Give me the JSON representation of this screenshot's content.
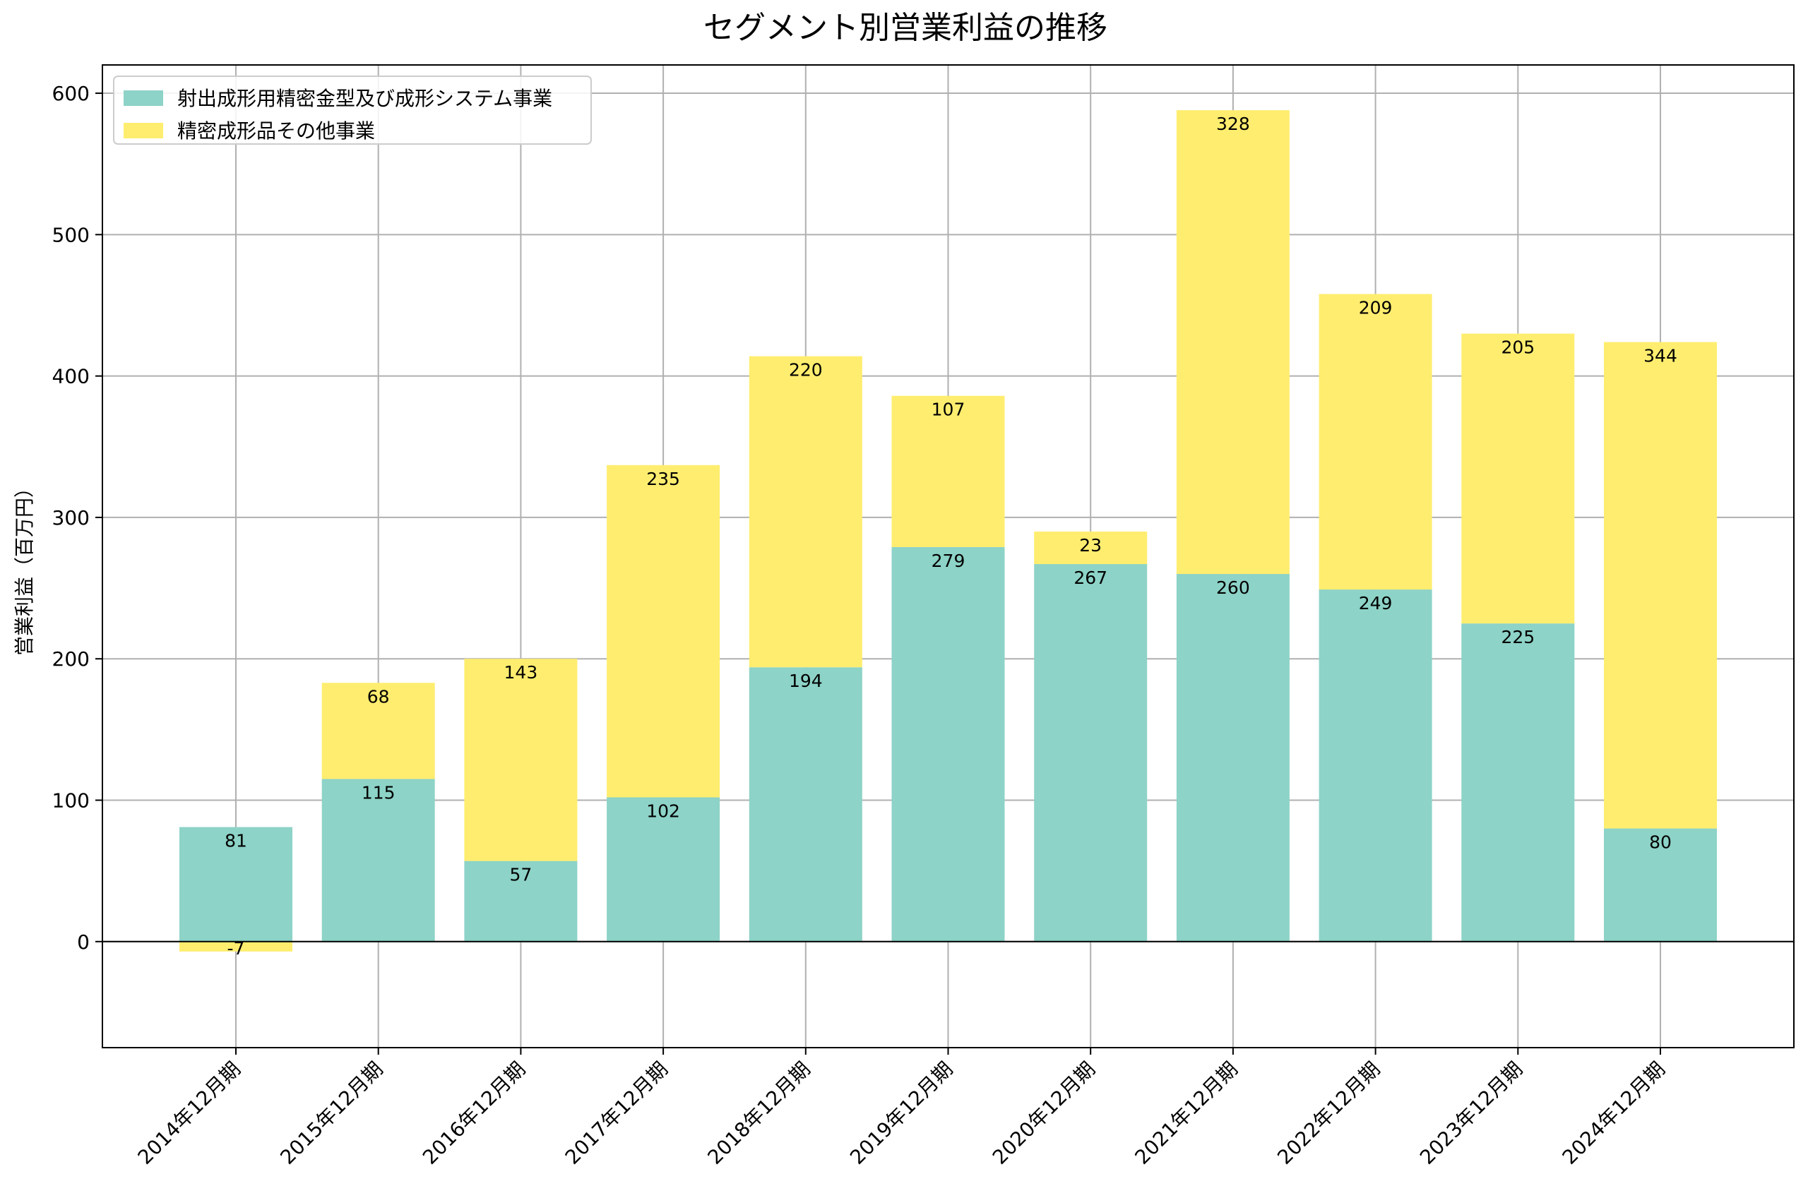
{
  "chart_data": {
    "type": "bar",
    "stacked": true,
    "title": "セグメント別営業利益の推移",
    "xlabel": "",
    "ylabel": "営業利益（百万円）",
    "ylim": [
      -75,
      620
    ],
    "yticks": [
      0,
      100,
      200,
      300,
      400,
      500,
      600
    ],
    "grid": true,
    "legend_position": "top-left",
    "categories": [
      "2014年12月期",
      "2015年12月期",
      "2016年12月期",
      "2017年12月期",
      "2018年12月期",
      "2019年12月期",
      "2020年12月期",
      "2021年12月期",
      "2022年12月期",
      "2023年12月期",
      "2024年12月期"
    ],
    "series": [
      {
        "name": "射出成形用精密金型及び成形システム事業",
        "color": "#8dd3c7",
        "values": [
          81,
          115,
          57,
          102,
          194,
          279,
          267,
          260,
          249,
          225,
          80
        ]
      },
      {
        "name": "精密成形品その他事業",
        "color": "#ffed6f",
        "values": [
          -7,
          68,
          143,
          235,
          220,
          107,
          23,
          328,
          209,
          205,
          344
        ]
      }
    ]
  }
}
